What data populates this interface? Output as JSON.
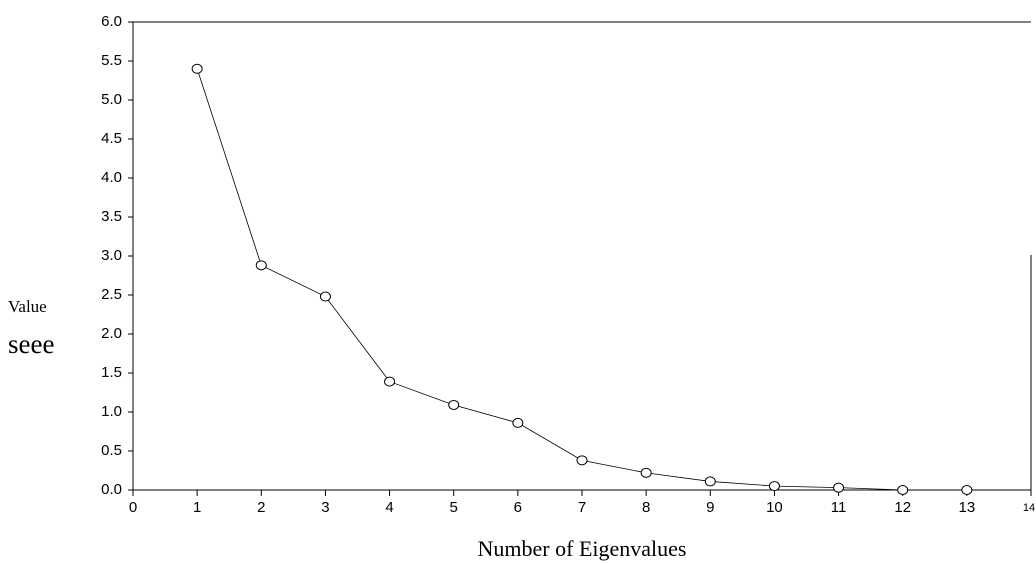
{
  "chart_data": {
    "type": "line",
    "x_label": "Number of Eigenvalues",
    "y_label": "Value",
    "y_label_note": "seee",
    "x": [
      1,
      2,
      3,
      4,
      5,
      6,
      7,
      8,
      9,
      10,
      11,
      12,
      13
    ],
    "values": [
      5.4,
      2.88,
      2.48,
      1.39,
      1.09,
      0.86,
      0.38,
      0.22,
      0.11,
      0.05,
      0.03,
      0.0,
      0.0
    ],
    "color": "#000000",
    "xlim": [
      0,
      14
    ],
    "xticks": [
      0,
      1,
      2,
      3,
      4,
      5,
      6,
      7,
      8,
      9,
      10,
      11,
      12,
      13,
      14
    ],
    "ylim": [
      0,
      6
    ],
    "yticks": [
      {
        "value": 0,
        "label": "0.0"
      },
      0.5,
      {
        "value": 1,
        "label": "1.0"
      },
      1.5,
      {
        "value": 2,
        "label": "2.0"
      },
      2.5,
      {
        "value": 3,
        "label": "3.0"
      },
      3.5,
      {
        "value": 4,
        "label": "4.0"
      },
      4.5,
      {
        "value": 5,
        "label": "5.0"
      },
      5.5,
      {
        "value": 6,
        "label": "6.0"
      }
    ]
  }
}
